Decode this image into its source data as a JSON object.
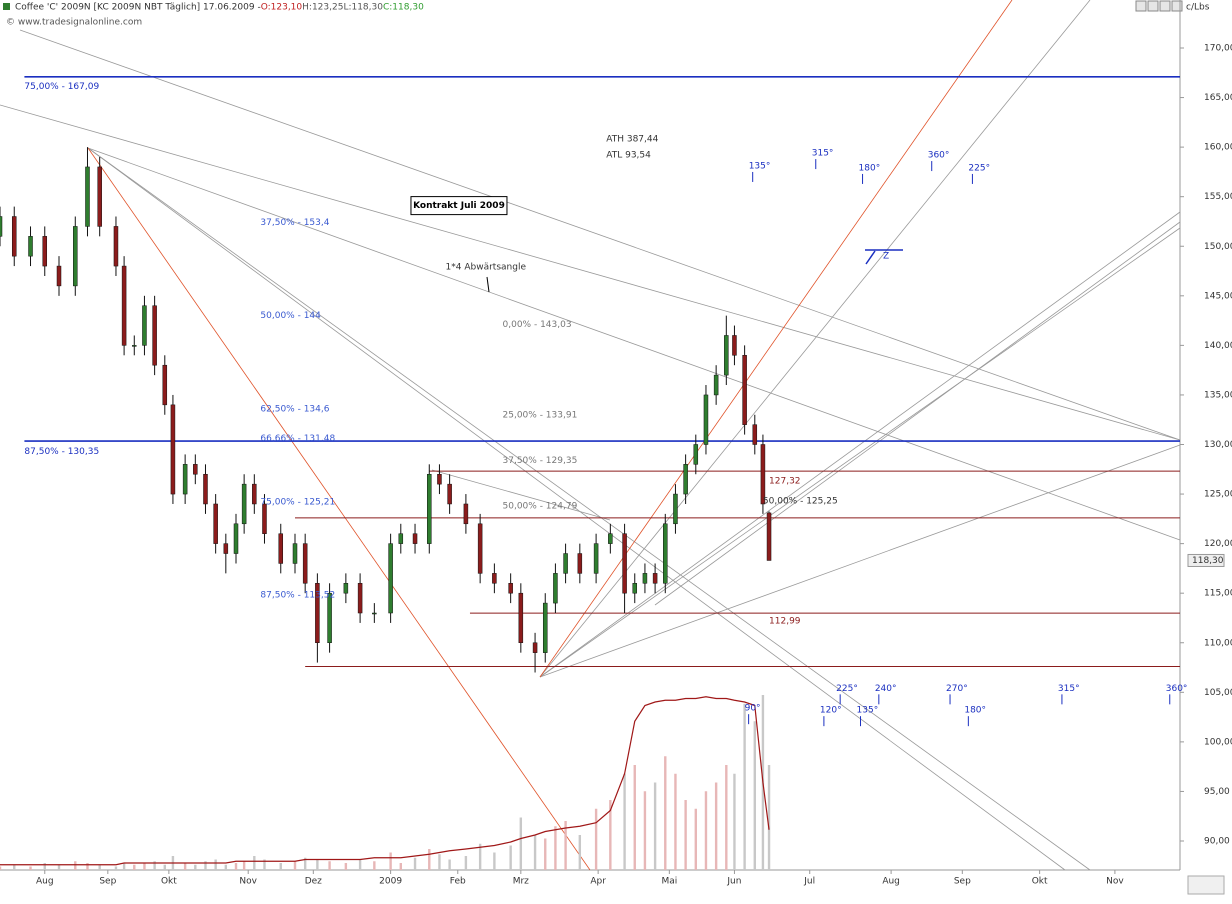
{
  "header": {
    "segments": [
      "Coffee 'C' 2009N [KC 2009N NBT Täglich] 17.06.2009 - ",
      "O:123,10",
      " H:123,25",
      " L:118,30",
      " C:118,30"
    ],
    "unit": "c/Lbs",
    "watermark": "© www.tradesignalonline.com"
  },
  "chart_data": {
    "type": "candlestick",
    "xlim": [
      0,
      580
    ],
    "xticks": [
      {
        "value": 22,
        "label": "Aug"
      },
      {
        "value": 53,
        "label": "Sep"
      },
      {
        "value": 83,
        "label": "Okt"
      },
      {
        "value": 122,
        "label": "Nov"
      },
      {
        "value": 154,
        "label": "Dez"
      },
      {
        "value": 192,
        "label": "2009"
      },
      {
        "value": 225,
        "label": "Feb"
      },
      {
        "value": 256,
        "label": "Mrz"
      },
      {
        "value": 294,
        "label": "Apr"
      },
      {
        "value": 329,
        "label": "Mai"
      },
      {
        "value": 361,
        "label": "Jun"
      },
      {
        "value": 398,
        "label": "Jul"
      },
      {
        "value": 438,
        "label": "Aug"
      },
      {
        "value": 473,
        "label": "Sep"
      },
      {
        "value": 511,
        "label": "Okt"
      },
      {
        "value": 548,
        "label": "Nov"
      }
    ],
    "ylim": [
      88,
      172
    ],
    "yticks": [
      {
        "value": 90,
        "label": "90,00"
      },
      {
        "value": 95,
        "label": "95,00"
      },
      {
        "value": 100,
        "label": "100,00"
      },
      {
        "value": 105,
        "label": "105,00"
      },
      {
        "value": 110,
        "label": "110,00"
      },
      {
        "value": 115,
        "label": "115,00"
      },
      {
        "value": 120,
        "label": "120,00"
      },
      {
        "value": 125,
        "label": "125,00"
      },
      {
        "value": 130,
        "label": "130,00"
      },
      {
        "value": 135,
        "label": "135,00"
      },
      {
        "value": 140,
        "label": "140,00"
      },
      {
        "value": 145,
        "label": "145,00"
      },
      {
        "value": 150,
        "label": "150,00"
      },
      {
        "value": 155,
        "label": "155,00"
      },
      {
        "value": 160,
        "label": "160,00"
      },
      {
        "value": 165,
        "label": "165,00"
      },
      {
        "value": 170,
        "label": "170,00"
      }
    ],
    "y2lim": [
      0,
      100
    ],
    "up_color": "#2f7d2f",
    "down_color": "#8b1c1c",
    "x": [
      0,
      7,
      15,
      22,
      29,
      37,
      43,
      49,
      57,
      61,
      66,
      71,
      76,
      81,
      85,
      91,
      96,
      101,
      106,
      111,
      116,
      120,
      125,
      130,
      138,
      145,
      150,
      156,
      162,
      170,
      177,
      184,
      192,
      197,
      204,
      211,
      216,
      221,
      229,
      236,
      243,
      251,
      256,
      263,
      268,
      273,
      278,
      285,
      293,
      300,
      307,
      312,
      317,
      322,
      327,
      332,
      337,
      342,
      347,
      352,
      357,
      361,
      366,
      371,
      375,
      378
    ],
    "open": [
      151,
      153,
      149,
      151,
      148,
      146,
      152,
      158,
      152,
      148,
      140,
      140,
      144,
      138,
      134,
      125,
      128,
      127,
      124,
      120,
      119,
      122,
      126,
      124,
      121,
      118,
      120,
      116,
      110,
      115,
      116,
      113,
      113,
      120,
      121,
      120,
      127,
      126,
      124,
      122,
      117,
      116,
      115,
      110,
      109,
      114,
      117,
      119,
      117,
      120,
      121,
      115,
      116,
      117,
      116,
      122,
      125,
      128,
      130,
      135,
      137,
      141,
      139,
      132,
      130,
      123.1
    ],
    "high": [
      154,
      154,
      152,
      152,
      149,
      153,
      160,
      159,
      153,
      149,
      141,
      145,
      145,
      139,
      135,
      129,
      129,
      128,
      125,
      121,
      123,
      127,
      127,
      125,
      122,
      121,
      121,
      117,
      116,
      117,
      117,
      114,
      121,
      122,
      122,
      128,
      128,
      127,
      125,
      123,
      118,
      117,
      116,
      111,
      115,
      118,
      120,
      120,
      121,
      122,
      122,
      117,
      118,
      118,
      123,
      126,
      129,
      131,
      136,
      138,
      143,
      142,
      140,
      133,
      131,
      123.25
    ],
    "low": [
      150,
      148,
      148,
      147,
      145,
      145,
      151,
      151,
      147,
      139,
      139,
      139,
      137,
      133,
      124,
      124,
      126,
      123,
      119,
      117,
      118,
      121,
      123,
      120,
      117,
      117,
      115,
      108,
      109,
      114,
      112,
      112,
      112,
      119,
      119,
      119,
      125,
      123,
      121,
      116,
      115,
      114,
      109,
      107,
      108,
      113,
      116,
      116,
      116,
      119,
      113,
      114,
      115,
      115,
      115,
      121,
      124,
      127,
      129,
      134,
      136,
      138,
      131,
      129,
      123,
      118.3
    ],
    "close": [
      153,
      149,
      151,
      148,
      146,
      152,
      158,
      152,
      148,
      140,
      140,
      144,
      138,
      134,
      125,
      128,
      127,
      124,
      120,
      119,
      122,
      126,
      124,
      121,
      118,
      120,
      116,
      110,
      115,
      116,
      113,
      113,
      120,
      121,
      120,
      127,
      126,
      124,
      122,
      117,
      116,
      115,
      110,
      109,
      114,
      117,
      119,
      117,
      120,
      121,
      115,
      116,
      117,
      116,
      122,
      125,
      128,
      130,
      135,
      137,
      141,
      139,
      132,
      130,
      124,
      118.3
    ],
    "last_label": "118,30",
    "series": [
      {
        "name": "Volume",
        "axis": "y2",
        "color": "#c8c8c8",
        "values": [
          2,
          3,
          2,
          4,
          3,
          5,
          4,
          3,
          2,
          4,
          3,
          4,
          5,
          3,
          8,
          4,
          3,
          5,
          6,
          3,
          4,
          5,
          8,
          6,
          4,
          5,
          7,
          6,
          5,
          4,
          6,
          5,
          10,
          4,
          7,
          12,
          9,
          6,
          8,
          15,
          10,
          14,
          30,
          20,
          18,
          25,
          28,
          20,
          35,
          40,
          55,
          60,
          45,
          50,
          65,
          55,
          40,
          35,
          45,
          50,
          60,
          55,
          95,
          85,
          100,
          60
        ]
      },
      {
        "name": "Open Interest",
        "axis": "y2",
        "color": "#a01818",
        "values": [
          3,
          3,
          3,
          3,
          3,
          3,
          3,
          3,
          3,
          4,
          4,
          4,
          4,
          4,
          4,
          4,
          4,
          4,
          4,
          4,
          5,
          5,
          5,
          5,
          5,
          5,
          6,
          6,
          6,
          6,
          6,
          7,
          7,
          7,
          8,
          9,
          10,
          11,
          12,
          13,
          14,
          16,
          18,
          20,
          22,
          23,
          24,
          25,
          27,
          34,
          55,
          85,
          94,
          96,
          97,
          97,
          98,
          98,
          99,
          98,
          98,
          97,
          96,
          94,
          50,
          23
        ]
      }
    ],
    "levels": [
      {
        "value": 167.09,
        "from": 12,
        "color": "#1a2fc0"
      },
      {
        "value": 130.35,
        "from": 12,
        "color": "#1a2fc0"
      },
      {
        "value": 127.32,
        "from": 211,
        "color": "#8b1c1c"
      },
      {
        "value": 122.6,
        "from": 145,
        "color": "#8b1c1c"
      },
      {
        "value": 112.99,
        "from": 231,
        "color": "#8b1c1c"
      },
      {
        "value": 107.6,
        "from": 150,
        "color": "#8b1c1c"
      }
    ],
    "annotations": [
      {
        "text": "75,00% - 167,09",
        "x": 12,
        "y": 166.1,
        "color": "#1a2fc0"
      },
      {
        "text": "87,50% - 130,35",
        "x": 12,
        "y": 129.3,
        "color": "#1a2fc0"
      },
      {
        "text": "37,50% - 153,4",
        "x": 128,
        "y": 152.4,
        "color": "#3a5ad0"
      },
      {
        "text": "50,00% - 144",
        "x": 128,
        "y": 143,
        "color": "#3a5ad0"
      },
      {
        "text": "62,50% - 134,6",
        "x": 128,
        "y": 133.6,
        "color": "#3a5ad0"
      },
      {
        "text": "66,66% - 131,48",
        "x": 128,
        "y": 130.6,
        "color": "#3a5ad0"
      },
      {
        "text": "75,00% - 125,21",
        "x": 128,
        "y": 124.2,
        "color": "#3a5ad0"
      },
      {
        "text": "87,50% - 113,52",
        "x": 128,
        "y": 114.8,
        "color": "#3a5ad0"
      },
      {
        "text": "0,00% - 143,03",
        "x": 247,
        "y": 142.1,
        "color": "#777"
      },
      {
        "text": "25,00% - 133,91",
        "x": 247,
        "y": 133,
        "color": "#777"
      },
      {
        "text": "37,50% - 129,35",
        "x": 247,
        "y": 128.4,
        "color": "#777"
      },
      {
        "text": "50,00% - 124,79",
        "x": 247,
        "y": 123.8,
        "color": "#777"
      },
      {
        "text": "50,00% - 125,25",
        "x": 375,
        "y": 124.3,
        "color": "#333"
      },
      {
        "text": "127,32",
        "x": 378,
        "y": 126.3,
        "color": "#8b1c1c"
      },
      {
        "text": "112,99",
        "x": 378,
        "y": 112.2,
        "color": "#8b1c1c"
      },
      {
        "text": "ATH 387,44",
        "x": 298,
        "y": 160.8,
        "color": "#333"
      },
      {
        "text": "ATL 93,54",
        "x": 298,
        "y": 159.2,
        "color": "#333"
      },
      {
        "text": "1*4 Abwärtsangle",
        "x": 219,
        "y": 147.9,
        "color": "#333"
      },
      {
        "text": "135°",
        "x": 368,
        "y": 158.1,
        "color": "#1a2fc0"
      },
      {
        "text": "315°",
        "x": 399,
        "y": 159.4,
        "color": "#1a2fc0"
      },
      {
        "text": "180°",
        "x": 422,
        "y": 157.9,
        "color": "#1a2fc0"
      },
      {
        "text": "360°",
        "x": 456,
        "y": 159.2,
        "color": "#1a2fc0"
      },
      {
        "text": "225°",
        "x": 476,
        "y": 157.9,
        "color": "#1a2fc0"
      },
      {
        "text": "90°",
        "x": 366,
        "y": 103.4,
        "color": "#1a2fc0"
      },
      {
        "text": "225°",
        "x": 411,
        "y": 105.4,
        "color": "#1a2fc0"
      },
      {
        "text": "240°",
        "x": 430,
        "y": 105.4,
        "color": "#1a2fc0"
      },
      {
        "text": "270°",
        "x": 465,
        "y": 105.4,
        "color": "#1a2fc0"
      },
      {
        "text": "315°",
        "x": 520,
        "y": 105.4,
        "color": "#1a2fc0"
      },
      {
        "text": "360°",
        "x": 573,
        "y": 105.4,
        "color": "#1a2fc0"
      },
      {
        "text": "120°",
        "x": 403,
        "y": 103.2,
        "color": "#1a2fc0"
      },
      {
        "text": "135°",
        "x": 421,
        "y": 103.2,
        "color": "#1a2fc0"
      },
      {
        "text": "180°",
        "x": 474,
        "y": 103.2,
        "color": "#1a2fc0"
      },
      {
        "text": "Z",
        "x": 434,
        "y": 149,
        "color": "#1a2fc0"
      }
    ],
    "box_label": {
      "text": "Kontrakt Juli 2009",
      "x": 202,
      "y": 154.1
    }
  }
}
